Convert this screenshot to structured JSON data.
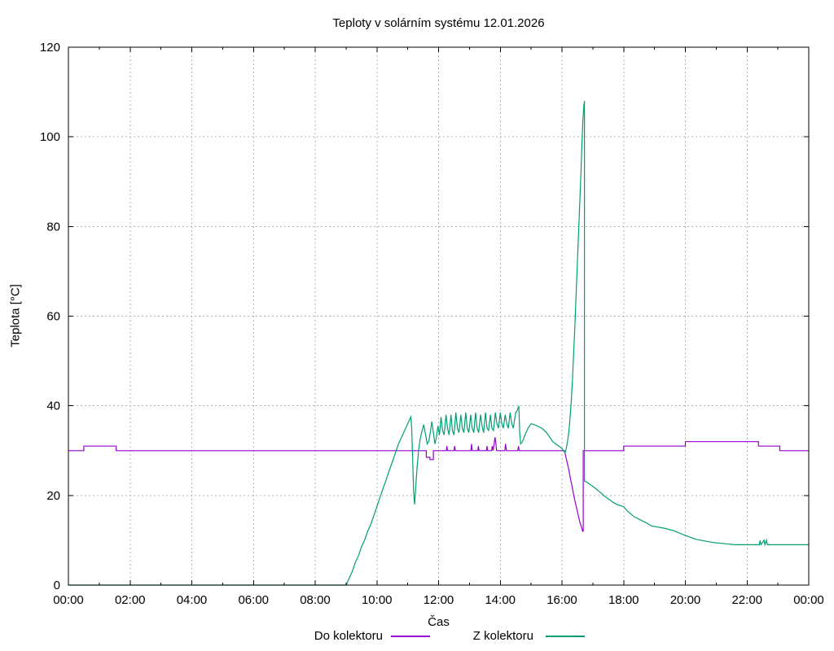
{
  "page": {
    "background": "#ffffff"
  },
  "chart_data": {
    "type": "line",
    "title": "Teploty v solárním systému 12.01.2026",
    "xlabel": "Čas",
    "ylabel": "Teplota [°C]",
    "xlim": [
      0,
      24
    ],
    "ylim": [
      0,
      120
    ],
    "grid": true,
    "grid_color": "#b3b3b3",
    "axis_color": "#000000",
    "legend_position": "bottom-center",
    "xticks": [
      {
        "h": 0,
        "label": "00:00"
      },
      {
        "h": 2,
        "label": "02:00"
      },
      {
        "h": 4,
        "label": "04:00"
      },
      {
        "h": 6,
        "label": "06:00"
      },
      {
        "h": 8,
        "label": "08:00"
      },
      {
        "h": 10,
        "label": "10:00"
      },
      {
        "h": 12,
        "label": "12:00"
      },
      {
        "h": 14,
        "label": "14:00"
      },
      {
        "h": 16,
        "label": "16:00"
      },
      {
        "h": 18,
        "label": "18:00"
      },
      {
        "h": 20,
        "label": "20:00"
      },
      {
        "h": 22,
        "label": "22:00"
      },
      {
        "h": 24,
        "label": "00:00"
      }
    ],
    "x_minor_hours": [
      1,
      3,
      5,
      7,
      9,
      11,
      13,
      15,
      17,
      19,
      21,
      23
    ],
    "yticks": [
      {
        "v": 0,
        "label": "0"
      },
      {
        "v": 20,
        "label": "20"
      },
      {
        "v": 40,
        "label": "40"
      },
      {
        "v": 60,
        "label": "60"
      },
      {
        "v": 80,
        "label": "80"
      },
      {
        "v": 100,
        "label": "100"
      },
      {
        "v": 120,
        "label": "120"
      }
    ],
    "series": [
      {
        "name": "Do kolektoru",
        "color": "#9400d3",
        "points": [
          [
            0,
            30
          ],
          [
            0.5,
            30
          ],
          [
            0.5,
            31
          ],
          [
            1.55,
            31
          ],
          [
            1.55,
            30
          ],
          [
            11.6,
            30
          ],
          [
            11.6,
            28.5
          ],
          [
            11.72,
            28.5
          ],
          [
            11.72,
            28
          ],
          [
            11.83,
            28
          ],
          [
            11.83,
            30
          ],
          [
            12.25,
            30
          ],
          [
            12.27,
            31
          ],
          [
            12.29,
            30
          ],
          [
            12.5,
            30
          ],
          [
            12.52,
            31
          ],
          [
            12.54,
            30
          ],
          [
            13.05,
            30
          ],
          [
            13.07,
            31.5
          ],
          [
            13.09,
            30
          ],
          [
            13.27,
            30
          ],
          [
            13.29,
            31
          ],
          [
            13.31,
            30
          ],
          [
            13.55,
            30
          ],
          [
            13.57,
            31
          ],
          [
            13.59,
            30
          ],
          [
            13.72,
            30
          ],
          [
            13.74,
            31
          ],
          [
            13.77,
            30
          ],
          [
            13.8,
            31.5
          ],
          [
            13.83,
            33
          ],
          [
            13.86,
            31.5
          ],
          [
            13.88,
            30
          ],
          [
            14.15,
            30
          ],
          [
            14.17,
            31.5
          ],
          [
            14.2,
            30
          ],
          [
            14.57,
            30
          ],
          [
            14.59,
            31
          ],
          [
            14.61,
            30
          ],
          [
            16.08,
            30
          ],
          [
            16.13,
            28.5
          ],
          [
            16.18,
            27
          ],
          [
            16.23,
            25.5
          ],
          [
            16.28,
            23.5
          ],
          [
            16.33,
            22
          ],
          [
            16.38,
            20
          ],
          [
            16.43,
            18.5
          ],
          [
            16.48,
            17
          ],
          [
            16.53,
            15.5
          ],
          [
            16.58,
            14
          ],
          [
            16.63,
            13
          ],
          [
            16.67,
            12
          ],
          [
            16.69,
            12
          ],
          [
            16.69,
            30
          ],
          [
            18,
            30
          ],
          [
            18,
            31
          ],
          [
            20,
            31
          ],
          [
            20,
            32
          ],
          [
            22.37,
            32
          ],
          [
            22.37,
            31
          ],
          [
            23.06,
            31
          ],
          [
            23.06,
            30
          ],
          [
            24,
            30
          ]
        ]
      },
      {
        "name": "Z kolektoru",
        "color": "#009e73",
        "points": [
          [
            0,
            0
          ],
          [
            9,
            0
          ],
          [
            9.1,
            1.5
          ],
          [
            9.2,
            3
          ],
          [
            9.3,
            5
          ],
          [
            9.4,
            6.5
          ],
          [
            9.5,
            8.5
          ],
          [
            9.6,
            10
          ],
          [
            9.7,
            12
          ],
          [
            9.8,
            13.5
          ],
          [
            9.9,
            15.5
          ],
          [
            10,
            17.5
          ],
          [
            10.1,
            19.5
          ],
          [
            10.2,
            21.5
          ],
          [
            10.3,
            23.5
          ],
          [
            10.4,
            25.5
          ],
          [
            10.5,
            27.5
          ],
          [
            10.6,
            29.5
          ],
          [
            10.7,
            31.5
          ],
          [
            10.8,
            33
          ],
          [
            10.9,
            34.5
          ],
          [
            11,
            36
          ],
          [
            11.1,
            37.5
          ],
          [
            11.13,
            35
          ],
          [
            11.16,
            28
          ],
          [
            11.19,
            21
          ],
          [
            11.22,
            18
          ],
          [
            11.26,
            22
          ],
          [
            11.3,
            26
          ],
          [
            11.35,
            30
          ],
          [
            11.4,
            32.5
          ],
          [
            11.45,
            34
          ],
          [
            11.52,
            35.8
          ],
          [
            11.58,
            33.5
          ],
          [
            11.63,
            31.5
          ],
          [
            11.68,
            32
          ],
          [
            11.73,
            34
          ],
          [
            11.78,
            36.5
          ],
          [
            11.83,
            34
          ],
          [
            11.88,
            31.5
          ],
          [
            11.93,
            33
          ],
          [
            11.98,
            35.5
          ],
          [
            12.03,
            33.5
          ],
          [
            12.08,
            37.5
          ],
          [
            12.13,
            34.5
          ],
          [
            12.18,
            33.5
          ],
          [
            12.24,
            38
          ],
          [
            12.29,
            35
          ],
          [
            12.34,
            33.5
          ],
          [
            12.4,
            38
          ],
          [
            12.45,
            34.5
          ],
          [
            12.5,
            33.5
          ],
          [
            12.56,
            38.5
          ],
          [
            12.61,
            35
          ],
          [
            12.66,
            34
          ],
          [
            12.72,
            38
          ],
          [
            12.77,
            35
          ],
          [
            12.82,
            34
          ],
          [
            12.88,
            38.5
          ],
          [
            12.93,
            35
          ],
          [
            12.98,
            34
          ],
          [
            13.04,
            38
          ],
          [
            13.09,
            35
          ],
          [
            13.14,
            34
          ],
          [
            13.2,
            38.5
          ],
          [
            13.25,
            35
          ],
          [
            13.3,
            34
          ],
          [
            13.36,
            38
          ],
          [
            13.41,
            35.5
          ],
          [
            13.46,
            34
          ],
          [
            13.52,
            38.5
          ],
          [
            13.57,
            35
          ],
          [
            13.62,
            34.5
          ],
          [
            13.68,
            38
          ],
          [
            13.73,
            35
          ],
          [
            13.78,
            34.5
          ],
          [
            13.84,
            38.5
          ],
          [
            13.89,
            36
          ],
          [
            13.94,
            35
          ],
          [
            14,
            38.5
          ],
          [
            14.05,
            36
          ],
          [
            14.1,
            35
          ],
          [
            14.16,
            38
          ],
          [
            14.21,
            36
          ],
          [
            14.26,
            35
          ],
          [
            14.32,
            38.5
          ],
          [
            14.37,
            36
          ],
          [
            14.42,
            35
          ],
          [
            14.5,
            38.5
          ],
          [
            14.55,
            39
          ],
          [
            14.6,
            40
          ],
          [
            14.63,
            34
          ],
          [
            14.66,
            31.5
          ],
          [
            14.72,
            32
          ],
          [
            14.8,
            33.5
          ],
          [
            14.9,
            35
          ],
          [
            15,
            36
          ],
          [
            15.1,
            35.8
          ],
          [
            15.2,
            35.5
          ],
          [
            15.35,
            35
          ],
          [
            15.5,
            34
          ],
          [
            15.6,
            33
          ],
          [
            15.7,
            32
          ],
          [
            15.8,
            31.5
          ],
          [
            15.9,
            31
          ],
          [
            16,
            30.5
          ],
          [
            16.05,
            30
          ],
          [
            16.1,
            29.5
          ],
          [
            16.14,
            30.5
          ],
          [
            16.18,
            32
          ],
          [
            16.22,
            34
          ],
          [
            16.26,
            37
          ],
          [
            16.3,
            41
          ],
          [
            16.34,
            46
          ],
          [
            16.38,
            52
          ],
          [
            16.42,
            58
          ],
          [
            16.46,
            65
          ],
          [
            16.5,
            72
          ],
          [
            16.54,
            79
          ],
          [
            16.58,
            86
          ],
          [
            16.62,
            93
          ],
          [
            16.65,
            99
          ],
          [
            16.68,
            104
          ],
          [
            16.71,
            107
          ],
          [
            16.73,
            108
          ],
          [
            16.73,
            23.2
          ],
          [
            16.8,
            23
          ],
          [
            16.9,
            22.5
          ],
          [
            17,
            22
          ],
          [
            17.1,
            21.5
          ],
          [
            17.18,
            21
          ],
          [
            17.28,
            20.5
          ],
          [
            17.35,
            20
          ],
          [
            17.45,
            19.5
          ],
          [
            17.55,
            19
          ],
          [
            17.65,
            18.5
          ],
          [
            17.78,
            18
          ],
          [
            17.9,
            17.7
          ],
          [
            18,
            17.5
          ],
          [
            18.12,
            16.5
          ],
          [
            18.35,
            15.2
          ],
          [
            18.7,
            14
          ],
          [
            18.9,
            13.2
          ],
          [
            19.3,
            12.7
          ],
          [
            19.6,
            12.2
          ],
          [
            19.95,
            11.2
          ],
          [
            20.35,
            10.2
          ],
          [
            20.9,
            9.5
          ],
          [
            21.6,
            9
          ],
          [
            22.4,
            9
          ],
          [
            22.42,
            10
          ],
          [
            22.45,
            9
          ],
          [
            22.55,
            10
          ],
          [
            22.58,
            9
          ],
          [
            22.63,
            10
          ],
          [
            22.66,
            9
          ],
          [
            24,
            9
          ]
        ]
      }
    ]
  }
}
